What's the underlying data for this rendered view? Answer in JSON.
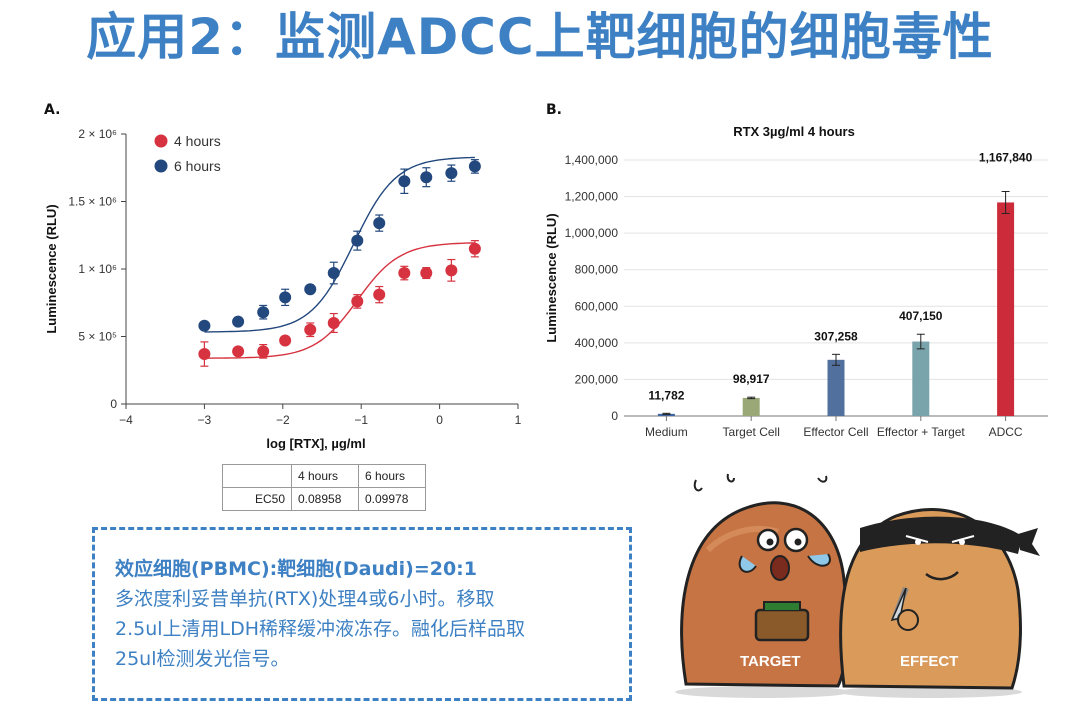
{
  "title": "应用2：监测ADCC上靶细胞的细胞毒性",
  "panel_a": {
    "label": "A."
  },
  "panel_b": {
    "label": "B."
  },
  "ec50_table": {
    "headers": [
      "",
      "4 hours",
      "6 hours"
    ],
    "rows": [
      [
        "EC50",
        "0.08958",
        "0.09978"
      ]
    ]
  },
  "note": {
    "title": "效应细胞(PBMC):靶细胞(Daudi)=20:1",
    "lines": [
      "多浓度利妥昔单抗(RTX)处理4或6小时。移取",
      "2.5ul上清用LDH稀释缓冲液冻存。融化后样品取",
      "25ul检测发光信号。"
    ]
  },
  "cartoon": {
    "target_label": "TARGET",
    "effect_label": "EFFECT"
  },
  "colors": {
    "title_blue": "#3d80c3",
    "red_series": "#d6323f",
    "blue_series": "#23487e"
  },
  "chart_data": [
    {
      "type": "scatter",
      "title": "",
      "xlabel": "log [RTX], µg/ml",
      "ylabel": "Luminescence (RLU)",
      "xlim": [
        -4,
        1
      ],
      "ylim": [
        0,
        2000000
      ],
      "xticks": [
        -4,
        -3,
        -2,
        -1,
        0,
        1
      ],
      "xtick_labels": [
        "−4",
        "−3",
        "−2",
        "−1",
        "0",
        "1"
      ],
      "yticks": [
        0,
        500000,
        1000000,
        1500000,
        2000000
      ],
      "ytick_labels": [
        "0",
        "5 × 10⁵",
        "1 × 10⁶",
        "1.5 × 10⁶",
        "2 × 10⁶"
      ],
      "legend_position": "top-left",
      "series": [
        {
          "name": "4 hours",
          "color": "#d6323f",
          "x": [
            -3.0,
            -2.57,
            -2.25,
            -1.97,
            -1.65,
            -1.35,
            -1.05,
            -0.77,
            -0.45,
            -0.17,
            0.15,
            0.45
          ],
          "y": [
            370000,
            390000,
            390000,
            470000,
            550000,
            600000,
            760000,
            810000,
            970000,
            970000,
            990000,
            1150000
          ],
          "err": [
            90000,
            20000,
            50000,
            25000,
            50000,
            70000,
            50000,
            60000,
            50000,
            40000,
            80000,
            60000
          ]
        },
        {
          "name": "6 hours",
          "color": "#23487e",
          "x": [
            -3.0,
            -2.57,
            -2.25,
            -1.97,
            -1.65,
            -1.35,
            -1.05,
            -0.77,
            -0.45,
            -0.17,
            0.15,
            0.45
          ],
          "y": [
            580000,
            610000,
            680000,
            790000,
            850000,
            970000,
            1210000,
            1340000,
            1650000,
            1680000,
            1710000,
            1760000
          ],
          "err": [
            20000,
            20000,
            50000,
            60000,
            20000,
            80000,
            70000,
            60000,
            90000,
            70000,
            60000,
            50000
          ]
        }
      ]
    },
    {
      "type": "bar",
      "title": "RTX 3µg/ml 4 hours",
      "xlabel": "",
      "ylabel": "Luminescence (RLU)",
      "ylim": [
        0,
        1400000
      ],
      "yticks": [
        0,
        200000,
        400000,
        600000,
        800000,
        1000000,
        1200000,
        1400000
      ],
      "ytick_labels": [
        "0",
        "200,000",
        "400,000",
        "600,000",
        "800,000",
        "1,000,000",
        "1,200,000",
        "1,400,000"
      ],
      "categories": [
        "Medium",
        "Target Cell",
        "Effector Cell",
        "Effector + Target",
        "ADCC"
      ],
      "values": [
        11782,
        98917,
        307258,
        407150,
        1167840
      ],
      "value_labels": [
        "11,782",
        "98,917",
        "307,258",
        "407,150",
        "1,167,840"
      ],
      "err": [
        3000,
        4000,
        30000,
        40000,
        60000
      ],
      "colors": [
        "#3f66a3",
        "#9aa777",
        "#52709e",
        "#7aa4ab",
        "#cc2c3a"
      ]
    }
  ]
}
